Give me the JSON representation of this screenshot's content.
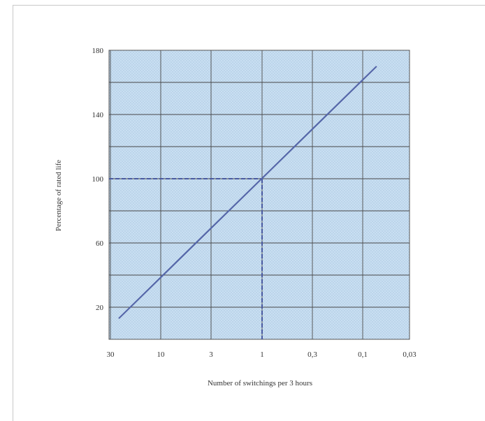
{
  "chart_data": {
    "type": "line",
    "title": "",
    "xlabel": "Number of switchings per 3 hours",
    "ylabel": "Percentage of rated life",
    "x_scale": "log",
    "x_reversed": true,
    "xlim": [
      30,
      0.03
    ],
    "ylim": [
      0,
      180
    ],
    "x_tick_labels": [
      "30",
      "10",
      "3",
      "1",
      "0,3",
      "0,1",
      "0,03"
    ],
    "x_tick_values": [
      30,
      10,
      3,
      1,
      0.3,
      0.1,
      0.03
    ],
    "y_tick_labels": [
      "20",
      "60",
      "100",
      "140",
      "180"
    ],
    "y_tick_values": [
      20,
      60,
      100,
      140,
      180
    ],
    "grid": true,
    "series": [
      {
        "x": [
          25,
          0.07
        ],
        "y": [
          13,
          170
        ]
      }
    ],
    "reference_point": {
      "x": 1,
      "y": 100
    },
    "colors": {
      "line": "#5566a8",
      "plot_bg": "#c9dff2",
      "grid": "#4a4a4a",
      "reference": "#4a5aa0"
    }
  }
}
